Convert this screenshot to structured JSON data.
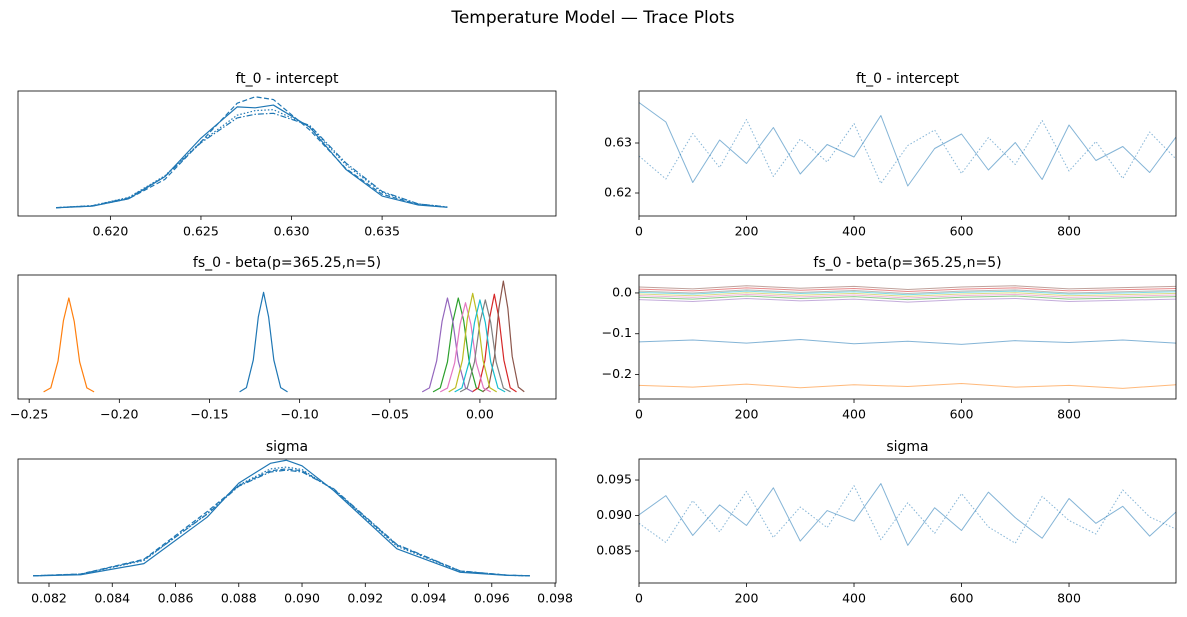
{
  "title": "Temperature Model — Trace Plots",
  "chart_data": [
    {
      "type": "kde",
      "title": "ft_0 - intercept",
      "xlim": [
        0.6149,
        0.6446
      ],
      "ylim": [
        -8.7,
        127.3
      ],
      "xticks": [
        {
          "value": 0.62,
          "label": "0.620"
        },
        0.625,
        {
          "value": 0.63,
          "label": "0.630"
        },
        0.635
      ],
      "x": [
        0.617,
        0.619,
        0.621,
        0.623,
        0.625,
        0.627,
        0.628,
        0.629,
        0.631,
        0.633,
        0.635,
        0.637,
        0.6386
      ],
      "series": [
        {
          "color": "#1f77b4",
          "dash": "solid",
          "values": [
            0.3,
            2.0,
            10,
            34,
            76,
            110,
            109,
            112,
            88,
            42,
            13,
            3.2,
            0.8
          ]
        },
        {
          "color": "#1f77b4",
          "dash": "dashed",
          "values": [
            0.2,
            2.2,
            10,
            31,
            72,
            114,
            121,
            118,
            85,
            43,
            15,
            3.8,
            0.9
          ]
        },
        {
          "color": "#1f77b4",
          "dash": "dotted",
          "values": [
            0.4,
            2.6,
            11.5,
            35,
            72,
            101,
            106,
            107,
            89,
            47,
            17,
            4.4,
            1.0
          ]
        },
        {
          "color": "#1f77b4",
          "dash": "dashdot",
          "values": [
            0.4,
            2.5,
            11,
            34,
            71,
            98,
            102,
            103,
            90,
            49,
            18,
            4.5,
            1.1
          ]
        }
      ]
    },
    {
      "type": "trace",
      "title": "ft_0 - intercept",
      "xlim": [
        0,
        999
      ],
      "ylim": [
        0.6154,
        0.6404
      ],
      "xticks": [
        0,
        200,
        400,
        600,
        800
      ],
      "yticks": [
        0.62,
        0.63
      ],
      "x": [
        0,
        50,
        100,
        150,
        200,
        250,
        300,
        350,
        400,
        450,
        500,
        550,
        600,
        650,
        700,
        750,
        800,
        850,
        900,
        950,
        999
      ],
      "series": [
        {
          "color": "#1f77b4",
          "dash": "solid",
          "values": [
            0.6381,
            0.6342,
            0.6221,
            0.6306,
            0.6259,
            0.6331,
            0.6238,
            0.6297,
            0.6272,
            0.6355,
            0.6214,
            0.6289,
            0.6318,
            0.6246,
            0.6301,
            0.6227,
            0.6336,
            0.6265,
            0.6293,
            0.6241,
            0.6312
          ]
        },
        {
          "color": "#1f77b4",
          "dash": "dotted",
          "values": [
            0.6274,
            0.6228,
            0.6319,
            0.6251,
            0.6347,
            0.6233,
            0.6308,
            0.6262,
            0.6339,
            0.6219,
            0.6295,
            0.6326,
            0.6239,
            0.6311,
            0.6257,
            0.6345,
            0.6244,
            0.6303,
            0.6229,
            0.6322,
            0.6268
          ]
        }
      ]
    },
    {
      "type": "kde",
      "title": "fs_0 - beta(p=365.25,n=5)",
      "xlim": [
        -0.2562,
        0.0422
      ],
      "ylim": [
        -7.4,
        124.5
      ],
      "xticks": [
        {
          "value": -0.25,
          "label": "−0.25"
        },
        {
          "value": -0.2,
          "label": "−0.20"
        },
        {
          "value": -0.15,
          "label": "−0.15"
        },
        {
          "value": -0.1,
          "label": "−0.10"
        },
        {
          "value": -0.05,
          "label": "−0.05"
        },
        {
          "value": 0,
          "label": "0.00"
        }
      ],
      "series": [
        {
          "color": "#1f77b4",
          "dash": "solid",
          "x": [
            -0.1333,
            -0.1295,
            -0.1257,
            -0.1229,
            -0.12,
            -0.1172,
            -0.1143,
            -0.1105,
            -0.1067
          ],
          "values": [
            0.2,
            4.7,
            34,
            80,
            106,
            80,
            34,
            4.7,
            0.2
          ]
        },
        {
          "color": "#ff7f0e",
          "dash": "solid",
          "x": [
            -0.242,
            -0.238,
            -0.234,
            -0.231,
            -0.228,
            -0.225,
            -0.222,
            -0.218,
            -0.214
          ],
          "values": [
            0.2,
            4.4,
            33,
            76,
            100,
            75,
            32,
            4.4,
            0.2
          ]
        },
        {
          "color": "#2ca02c",
          "dash": "solid",
          "x": [
            -0.026,
            -0.022,
            -0.018,
            -0.015,
            -0.012,
            -0.009,
            -0.006,
            -0.002,
            0.002
          ],
          "values": [
            0.2,
            4.4,
            32,
            75,
            100,
            76,
            33,
            4.4,
            0.2
          ]
        },
        {
          "color": "#d62728",
          "dash": "solid",
          "x": [
            -0.0043,
            -0.0008,
            0.0028,
            0.0054,
            0.008,
            0.0106,
            0.0133,
            0.0168,
            0.0203
          ],
          "values": [
            0.2,
            4.6,
            34,
            79,
            104,
            78,
            34,
            4.6,
            0.2
          ]
        },
        {
          "color": "#9467bd",
          "dash": "solid",
          "x": [
            -0.032,
            -0.028,
            -0.024,
            -0.021,
            -0.018,
            -0.015,
            -0.012,
            -0.008,
            -0.004
          ],
          "values": [
            0.2,
            4.4,
            33,
            75,
            100,
            75,
            33,
            4.4,
            0.2
          ]
        },
        {
          "color": "#8c564b",
          "dash": "solid",
          "x": [
            0.0015,
            0.0048,
            0.0081,
            0.0105,
            0.013,
            0.0155,
            0.0179,
            0.0213,
            0.0246
          ],
          "values": [
            0.3,
            5.2,
            38,
            89,
            118,
            89,
            38,
            5.2,
            0.3
          ]
        },
        {
          "color": "#e377c2",
          "dash": "solid",
          "x": [
            -0.022,
            -0.018,
            -0.014,
            -0.011,
            -0.008,
            -0.005,
            -0.002,
            0.002,
            0.006
          ],
          "values": [
            0.2,
            4.2,
            31,
            72,
            95,
            72,
            31,
            4.2,
            0.2
          ]
        },
        {
          "color": "#7f7f7f",
          "dash": "solid",
          "x": [
            -0.011,
            -0.007,
            -0.003,
            0,
            0.003,
            0.006,
            0.009,
            0.013,
            0.017
          ],
          "values": [
            0.2,
            4.3,
            32,
            74,
            98,
            74,
            32,
            4.3,
            0.2
          ]
        },
        {
          "color": "#bcbd22",
          "dash": "solid",
          "x": [
            -0.0173,
            -0.0135,
            -0.0097,
            -0.0069,
            -0.004,
            -0.0012,
            0.0017,
            0.0055,
            0.0093
          ],
          "values": [
            0.2,
            4.6,
            34,
            79,
            105,
            79,
            34,
            4.6,
            0.2
          ]
        },
        {
          "color": "#17becf",
          "dash": "solid",
          "x": [
            -0.014,
            -0.01,
            -0.006,
            -0.003,
            0,
            0.003,
            0.006,
            0.01,
            0.014
          ],
          "values": [
            0.2,
            4.3,
            32,
            74,
            98,
            74,
            32,
            4.3,
            0.2
          ]
        }
      ]
    },
    {
      "type": "trace",
      "title": "fs_0 - beta(p=365.25,n=5)",
      "xlim": [
        0,
        999
      ],
      "ylim": [
        -0.26,
        0.044
      ],
      "xticks": [
        0,
        200,
        400,
        600,
        800
      ],
      "yticks": [
        {
          "value": -0.2,
          "label": "−0.2"
        },
        {
          "value": -0.1,
          "label": "−0.1"
        },
        {
          "value": 0,
          "label": "0.0"
        }
      ],
      "x": [
        0,
        100,
        200,
        300,
        400,
        500,
        600,
        700,
        800,
        900,
        999
      ],
      "series": [
        {
          "color": "#1f77b4",
          "dash": "solid",
          "values": [
            -0.12,
            -0.1155,
            -0.123,
            -0.114,
            -0.1245,
            -0.1185,
            -0.126,
            -0.117,
            -0.1215,
            -0.1155,
            -0.123
          ]
        },
        {
          "color": "#ff7f0e",
          "dash": "solid",
          "values": [
            -0.2265,
            -0.231,
            -0.2235,
            -0.2325,
            -0.225,
            -0.2295,
            -0.222,
            -0.231,
            -0.2265,
            -0.234,
            -0.225
          ]
        },
        {
          "color": "#2ca02c",
          "dash": "solid",
          "values": [
            -0.0105,
            -0.015,
            -0.0075,
            -0.0135,
            -0.009,
            -0.0165,
            -0.0105,
            -0.0075,
            -0.015,
            -0.012,
            -0.009
          ]
        },
        {
          "color": "#d62728",
          "dash": "solid",
          "values": [
            0.0095,
            0.005,
            0.0125,
            0.0065,
            0.011,
            0.0035,
            0.0095,
            0.0125,
            0.005,
            0.008,
            0.011
          ]
        },
        {
          "color": "#9467bd",
          "dash": "solid",
          "values": [
            -0.0165,
            -0.021,
            -0.0135,
            -0.0195,
            -0.015,
            -0.0225,
            -0.0165,
            -0.0135,
            -0.021,
            -0.018,
            -0.015
          ]
        },
        {
          "color": "#8c564b",
          "dash": "solid",
          "values": [
            0.0145,
            0.01,
            0.0175,
            0.0115,
            0.016,
            0.0085,
            0.0145,
            0.0175,
            0.01,
            0.013,
            0.016
          ]
        },
        {
          "color": "#e377c2",
          "dash": "solid",
          "values": [
            -0.0065,
            -0.011,
            -0.0035,
            -0.0095,
            -0.005,
            -0.0125,
            -0.0065,
            -0.0035,
            -0.011,
            -0.008,
            -0.005
          ]
        },
        {
          "color": "#7f7f7f",
          "dash": "solid",
          "values": [
            0.0045,
            0.0,
            0.0075,
            0.0015,
            0.006,
            -0.0015,
            0.0045,
            0.0075,
            0.0,
            0.003,
            0.006
          ]
        },
        {
          "color": "#bcbd22",
          "dash": "solid",
          "values": [
            -0.0025,
            -0.007,
            0.0005,
            -0.0055,
            -0.001,
            -0.0085,
            -0.0025,
            0.0005,
            -0.007,
            -0.004,
            -0.001
          ]
        },
        {
          "color": "#17becf",
          "dash": "solid",
          "values": [
            0.0015,
            -0.003,
            0.0045,
            -0.0015,
            0.003,
            -0.0045,
            0.0015,
            0.0045,
            -0.003,
            0.0,
            0.003
          ]
        }
      ]
    },
    {
      "type": "kde",
      "title": "sigma",
      "xlim": [
        0.08102,
        0.09803
      ],
      "ylim": [
        -11.3,
        189
      ],
      "xticks": [
        0.082,
        0.084,
        0.086,
        0.088,
        {
          "value": 0.09,
          "label": "0.090"
        },
        0.092,
        0.094,
        0.096,
        0.098
      ],
      "x": [
        0.0815,
        0.083,
        0.085,
        0.087,
        0.088,
        0.089,
        0.0895,
        0.09,
        0.091,
        0.093,
        0.095,
        0.0965,
        0.0972
      ],
      "series": [
        {
          "color": "#1f77b4",
          "dash": "solid",
          "values": [
            0.2,
            2,
            20,
            95,
            150,
            182,
            187,
            178,
            138,
            44,
            6,
            0.9,
            0.3
          ]
        },
        {
          "color": "#1f77b4",
          "dash": "dashed",
          "values": [
            0.4,
            3.2,
            27,
            104,
            146,
            170,
            173,
            170,
            140,
            50,
            8,
            1.3,
            0.4
          ]
        },
        {
          "color": "#1f77b4",
          "dash": "dotted",
          "values": [
            0.3,
            2.8,
            25,
            101,
            147,
            173,
            176,
            172,
            139,
            48,
            7.5,
            1.1,
            0.3
          ]
        },
        {
          "color": "#1f77b4",
          "dash": "dashdot",
          "values": [
            0.4,
            3,
            26,
            100,
            145,
            168,
            171,
            168,
            141,
            51,
            8.2,
            1.4,
            0.5
          ]
        }
      ]
    },
    {
      "type": "trace",
      "title": "sigma",
      "xlim": [
        0,
        999
      ],
      "ylim": [
        0.0805,
        0.09796
      ],
      "xticks": [
        0,
        200,
        400,
        600,
        800
      ],
      "yticks": [
        0.085,
        {
          "value": 0.09,
          "label": "0.090"
        },
        0.095
      ],
      "x": [
        0,
        50,
        100,
        150,
        200,
        250,
        300,
        350,
        400,
        450,
        500,
        550,
        600,
        650,
        700,
        750,
        800,
        850,
        900,
        950,
        999
      ],
      "series": [
        {
          "color": "#1f77b4",
          "dash": "solid",
          "values": [
            0.0901,
            0.0928,
            0.0872,
            0.0915,
            0.0886,
            0.0939,
            0.0864,
            0.0907,
            0.0892,
            0.0945,
            0.0858,
            0.0911,
            0.0879,
            0.0933,
            0.0897,
            0.0868,
            0.0924,
            0.0889,
            0.0913,
            0.0871,
            0.0905
          ]
        },
        {
          "color": "#1f77b4",
          "dash": "dotted",
          "values": [
            0.0889,
            0.0862,
            0.0921,
            0.0877,
            0.0934,
            0.0869,
            0.0912,
            0.0883,
            0.0942,
            0.0866,
            0.0918,
            0.0875,
            0.0931,
            0.0884,
            0.0861,
            0.0927,
            0.0893,
            0.0874,
            0.0936,
            0.0898,
            0.0881
          ]
        }
      ]
    }
  ]
}
